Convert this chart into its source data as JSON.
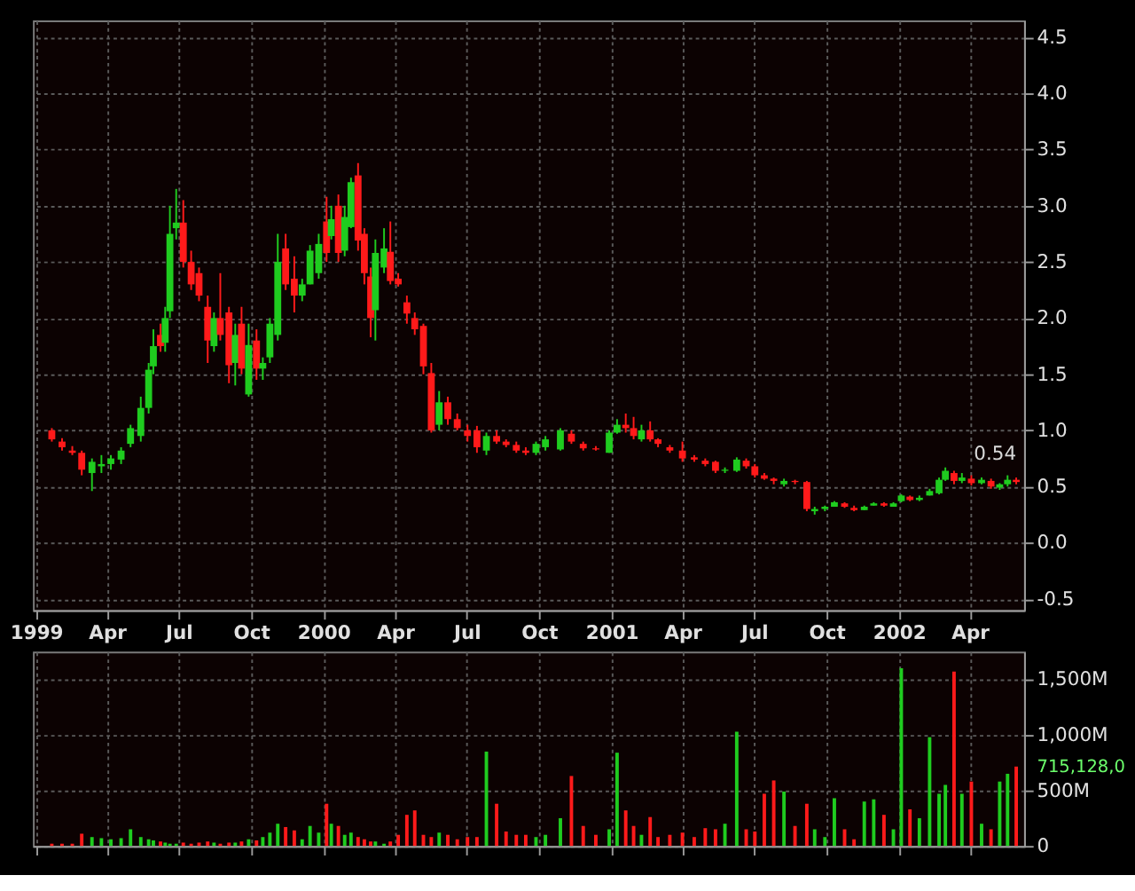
{
  "chart_data": [
    {
      "type": "candlestick",
      "x": [
        "1999-01-21",
        "1999-02-03",
        "1999-02-16",
        "1999-02-28",
        "1999-03-13",
        "1999-03-25",
        "1999-04-06",
        "1999-04-19",
        "1999-05-01",
        "1999-05-14",
        "1999-05-24",
        "1999-05-30",
        "1999-06-08",
        "1999-06-14",
        "1999-06-20",
        "1999-06-28",
        "1999-07-07",
        "1999-07-17",
        "1999-07-27",
        "1999-08-07",
        "1999-08-15",
        "1999-08-23",
        "1999-09-03",
        "1999-09-11",
        "1999-09-19",
        "1999-09-28",
        "1999-10-08",
        "1999-10-16",
        "1999-10-25",
        "1999-11-04",
        "1999-11-14",
        "1999-11-25",
        "1999-12-05",
        "1999-12-15",
        "1999-12-26",
        "2000-01-05",
        "2000-01-11",
        "2000-01-20",
        "2000-01-28",
        "2000-02-05",
        "2000-02-14",
        "2000-02-22",
        "2000-03-01",
        "2000-03-07",
        "2000-03-18",
        "2000-03-26",
        "2000-04-05",
        "2000-04-16",
        "2000-04-26",
        "2000-05-07",
        "2000-05-17",
        "2000-05-27",
        "2000-06-07",
        "2000-06-19",
        "2000-07-02",
        "2000-07-14",
        "2000-07-26",
        "2000-08-08",
        "2000-08-20",
        "2000-09-02",
        "2000-09-14",
        "2000-09-27",
        "2000-10-09",
        "2000-10-28",
        "2000-11-11",
        "2000-11-26",
        "2000-12-12",
        "2000-12-29",
        "2001-01-08",
        "2001-01-19",
        "2001-01-29",
        "2001-02-08",
        "2001-02-19",
        "2001-03-01",
        "2001-03-16",
        "2001-04-01",
        "2001-04-16",
        "2001-04-30",
        "2001-05-13",
        "2001-05-25",
        "2001-06-09",
        "2001-06-21",
        "2001-07-02",
        "2001-07-14",
        "2001-07-26",
        "2001-08-08",
        "2001-08-22",
        "2001-09-06",
        "2001-09-16",
        "2001-09-29",
        "2001-10-11",
        "2001-10-24",
        "2001-11-05",
        "2001-11-18",
        "2001-11-30",
        "2001-12-13",
        "2001-12-25",
        "2002-01-04",
        "2002-01-15",
        "2002-01-27",
        "2002-02-09",
        "2002-02-21",
        "2002-03-01",
        "2002-03-12",
        "2002-03-22",
        "2002-04-03",
        "2002-04-16",
        "2002-04-28",
        "2002-05-09",
        "2002-05-19",
        "2002-05-30"
      ],
      "ohlc": [
        [
          1.0,
          1.02,
          0.9,
          0.92
        ],
        [
          0.9,
          0.93,
          0.82,
          0.85
        ],
        [
          0.82,
          0.86,
          0.78,
          0.8
        ],
        [
          0.8,
          0.82,
          0.6,
          0.65
        ],
        [
          0.62,
          0.75,
          0.46,
          0.72
        ],
        [
          0.68,
          0.78,
          0.62,
          0.7
        ],
        [
          0.7,
          0.78,
          0.65,
          0.75
        ],
        [
          0.74,
          0.85,
          0.7,
          0.82
        ],
        [
          0.88,
          1.05,
          0.85,
          1.02
        ],
        [
          0.95,
          1.3,
          0.9,
          1.2
        ],
        [
          1.2,
          1.6,
          1.15,
          1.54
        ],
        [
          1.57,
          1.9,
          1.5,
          1.75
        ],
        [
          1.85,
          1.95,
          1.7,
          1.75
        ],
        [
          1.78,
          2.1,
          1.7,
          2.0
        ],
        [
          2.06,
          3.0,
          2.0,
          2.75
        ],
        [
          2.8,
          3.15,
          2.7,
          2.85
        ],
        [
          2.85,
          3.05,
          2.45,
          2.5
        ],
        [
          2.5,
          2.6,
          2.25,
          2.3
        ],
        [
          2.4,
          2.45,
          2.15,
          2.2
        ],
        [
          2.1,
          2.2,
          1.6,
          1.8
        ],
        [
          1.75,
          2.05,
          1.7,
          2.0
        ],
        [
          2.0,
          2.4,
          1.8,
          1.85
        ],
        [
          2.05,
          2.1,
          1.42,
          1.58
        ],
        [
          1.6,
          1.95,
          1.4,
          1.85
        ],
        [
          1.95,
          2.1,
          1.5,
          1.55
        ],
        [
          1.32,
          1.95,
          1.3,
          1.76
        ],
        [
          1.8,
          1.9,
          1.45,
          1.55
        ],
        [
          1.55,
          1.65,
          1.45,
          1.6
        ],
        [
          1.65,
          2.0,
          1.6,
          1.95
        ],
        [
          1.85,
          2.75,
          1.8,
          2.5
        ],
        [
          2.62,
          2.75,
          2.25,
          2.3
        ],
        [
          2.35,
          2.55,
          2.05,
          2.2
        ],
        [
          2.2,
          2.35,
          2.15,
          2.3
        ],
        [
          2.3,
          2.65,
          2.3,
          2.6
        ],
        [
          2.4,
          2.75,
          2.35,
          2.66
        ],
        [
          2.86,
          3.08,
          2.5,
          2.58
        ],
        [
          2.73,
          3.0,
          2.7,
          2.88
        ],
        [
          3.0,
          3.1,
          2.5,
          2.58
        ],
        [
          2.6,
          3.0,
          2.55,
          2.9
        ],
        [
          2.81,
          3.25,
          2.8,
          3.21
        ],
        [
          3.27,
          3.38,
          2.6,
          2.69
        ],
        [
          2.75,
          2.8,
          2.3,
          2.4
        ],
        [
          2.37,
          2.45,
          1.83,
          2.0
        ],
        [
          2.07,
          2.7,
          1.8,
          2.58
        ],
        [
          2.45,
          2.8,
          2.4,
          2.62
        ],
        [
          2.59,
          2.86,
          2.3,
          2.33
        ],
        [
          2.35,
          2.4,
          2.28,
          2.3
        ],
        [
          2.14,
          2.2,
          1.95,
          2.04
        ],
        [
          2.0,
          2.05,
          1.85,
          1.9
        ],
        [
          1.93,
          1.95,
          1.5,
          1.57
        ],
        [
          1.51,
          1.6,
          0.98,
          1.0
        ],
        [
          1.05,
          1.35,
          1.0,
          1.25
        ],
        [
          1.25,
          1.3,
          1.05,
          1.1
        ],
        [
          1.1,
          1.15,
          1.0,
          1.02
        ],
        [
          1.0,
          1.05,
          0.9,
          0.95
        ],
        [
          1.0,
          1.04,
          0.8,
          0.85
        ],
        [
          0.82,
          0.98,
          0.78,
          0.95
        ],
        [
          0.95,
          1.0,
          0.88,
          0.9
        ],
        [
          0.9,
          0.92,
          0.85,
          0.87
        ],
        [
          0.87,
          0.9,
          0.8,
          0.82
        ],
        [
          0.82,
          0.85,
          0.78,
          0.8
        ],
        [
          0.8,
          0.9,
          0.78,
          0.88
        ],
        [
          0.85,
          0.95,
          0.82,
          0.92
        ],
        [
          0.83,
          1.02,
          0.82,
          1.0
        ],
        [
          0.97,
          1.0,
          0.88,
          0.9
        ],
        [
          0.88,
          0.9,
          0.82,
          0.84
        ],
        [
          0.84,
          0.86,
          0.82,
          0.83
        ],
        [
          0.8,
          1.0,
          0.8,
          0.98
        ],
        [
          0.98,
          1.1,
          0.97,
          1.05
        ],
        [
          1.05,
          1.15,
          0.98,
          1.02
        ],
        [
          1.02,
          1.12,
          0.92,
          0.95
        ],
        [
          0.92,
          1.05,
          0.9,
          1.0
        ],
        [
          1.0,
          1.08,
          0.9,
          0.92
        ],
        [
          0.92,
          0.93,
          0.85,
          0.88
        ],
        [
          0.85,
          0.87,
          0.8,
          0.82
        ],
        [
          0.82,
          0.9,
          0.72,
          0.75
        ],
        [
          0.76,
          0.78,
          0.72,
          0.74
        ],
        [
          0.73,
          0.75,
          0.68,
          0.7
        ],
        [
          0.72,
          0.73,
          0.62,
          0.64
        ],
        [
          0.64,
          0.67,
          0.62,
          0.65
        ],
        [
          0.64,
          0.76,
          0.63,
          0.74
        ],
        [
          0.73,
          0.75,
          0.66,
          0.68
        ],
        [
          0.68,
          0.7,
          0.58,
          0.6
        ],
        [
          0.6,
          0.62,
          0.56,
          0.57
        ],
        [
          0.57,
          0.58,
          0.52,
          0.55
        ],
        [
          0.52,
          0.57,
          0.5,
          0.55
        ],
        [
          0.55,
          0.56,
          0.52,
          0.54
        ],
        [
          0.54,
          0.55,
          0.28,
          0.3
        ],
        [
          0.28,
          0.32,
          0.25,
          0.3
        ],
        [
          0.3,
          0.33,
          0.28,
          0.32
        ],
        [
          0.32,
          0.37,
          0.32,
          0.36
        ],
        [
          0.35,
          0.36,
          0.31,
          0.32
        ],
        [
          0.31,
          0.33,
          0.28,
          0.29
        ],
        [
          0.29,
          0.33,
          0.29,
          0.32
        ],
        [
          0.33,
          0.36,
          0.33,
          0.35
        ],
        [
          0.35,
          0.36,
          0.32,
          0.33
        ],
        [
          0.32,
          0.36,
          0.32,
          0.35
        ],
        [
          0.37,
          0.43,
          0.36,
          0.42
        ],
        [
          0.41,
          0.42,
          0.37,
          0.38
        ],
        [
          0.38,
          0.42,
          0.37,
          0.4
        ],
        [
          0.42,
          0.48,
          0.42,
          0.46
        ],
        [
          0.44,
          0.58,
          0.43,
          0.56
        ],
        [
          0.56,
          0.67,
          0.55,
          0.64
        ],
        [
          0.62,
          0.64,
          0.52,
          0.55
        ],
        [
          0.55,
          0.62,
          0.53,
          0.58
        ],
        [
          0.57,
          0.6,
          0.51,
          0.53
        ],
        [
          0.53,
          0.58,
          0.52,
          0.56
        ],
        [
          0.55,
          0.57,
          0.48,
          0.5
        ],
        [
          0.49,
          0.53,
          0.47,
          0.52
        ],
        [
          0.52,
          0.6,
          0.5,
          0.56
        ],
        [
          0.56,
          0.58,
          0.52,
          0.54
        ]
      ],
      "colors": [
        "#ff1a1a",
        "#ff1a1a",
        "#ff1a1a",
        "#ff1a1a",
        "#1fcc1f",
        "#1fcc1f",
        "#1fcc1f",
        "#1fcc1f",
        "#1fcc1f",
        "#1fcc1f",
        "#1fcc1f",
        "#1fcc1f",
        "#ff1a1a",
        "#1fcc1f",
        "#1fcc1f",
        "#1fcc1f",
        "#ff1a1a",
        "#ff1a1a",
        "#ff1a1a",
        "#ff1a1a",
        "#1fcc1f",
        "#ff1a1a",
        "#ff1a1a",
        "#1fcc1f",
        "#ff1a1a",
        "#1fcc1f",
        "#ff1a1a",
        "#1fcc1f",
        "#1fcc1f",
        "#1fcc1f",
        "#ff1a1a",
        "#ff1a1a",
        "#1fcc1f",
        "#1fcc1f",
        "#1fcc1f",
        "#ff1a1a",
        "#1fcc1f",
        "#ff1a1a",
        "#1fcc1f",
        "#1fcc1f",
        "#ff1a1a",
        "#ff1a1a",
        "#ff1a1a",
        "#1fcc1f",
        "#1fcc1f",
        "#ff1a1a",
        "#ff1a1a",
        "#ff1a1a",
        "#ff1a1a",
        "#ff1a1a",
        "#ff1a1a",
        "#1fcc1f",
        "#ff1a1a",
        "#ff1a1a",
        "#ff1a1a",
        "#ff1a1a",
        "#1fcc1f",
        "#ff1a1a",
        "#ff1a1a",
        "#ff1a1a",
        "#ff1a1a",
        "#1fcc1f",
        "#1fcc1f",
        "#1fcc1f",
        "#ff1a1a",
        "#ff1a1a",
        "#ff1a1a",
        "#1fcc1f",
        "#1fcc1f",
        "#ff1a1a",
        "#ff1a1a",
        "#1fcc1f",
        "#ff1a1a",
        "#ff1a1a",
        "#ff1a1a",
        "#ff1a1a",
        "#ff1a1a",
        "#ff1a1a",
        "#ff1a1a",
        "#1fcc1f",
        "#1fcc1f",
        "#ff1a1a",
        "#ff1a1a",
        "#ff1a1a",
        "#ff1a1a",
        "#1fcc1f",
        "#ff1a1a",
        "#ff1a1a",
        "#1fcc1f",
        "#1fcc1f",
        "#1fcc1f",
        "#ff1a1a",
        "#ff1a1a",
        "#1fcc1f",
        "#1fcc1f",
        "#ff1a1a",
        "#1fcc1f",
        "#1fcc1f",
        "#ff1a1a",
        "#1fcc1f",
        "#1fcc1f",
        "#1fcc1f",
        "#1fcc1f",
        "#ff1a1a",
        "#1fcc1f",
        "#ff1a1a",
        "#1fcc1f",
        "#ff1a1a",
        "#1fcc1f",
        "#1fcc1f",
        "#ff1a1a"
      ],
      "xlim": [
        "1998-12-28",
        "2002-06-09"
      ],
      "xticks": [
        {
          "value": "1999-01-01",
          "label": "1999"
        },
        {
          "value": "1999-04-01",
          "label": "Apr"
        },
        {
          "value": "1999-07-01",
          "label": "Jul"
        },
        {
          "value": "1999-10-01",
          "label": "Oct"
        },
        {
          "value": "2000-01-01",
          "label": "2000"
        },
        {
          "value": "2000-04-01",
          "label": "Apr"
        },
        {
          "value": "2000-07-01",
          "label": "Jul"
        },
        {
          "value": "2000-10-01",
          "label": "Oct"
        },
        {
          "value": "2001-01-01",
          "label": "2001"
        },
        {
          "value": "2001-04-01",
          "label": "Apr"
        },
        {
          "value": "2001-07-01",
          "label": "Jul"
        },
        {
          "value": "2001-10-01",
          "label": "Oct"
        },
        {
          "value": "2002-01-01",
          "label": "2002"
        },
        {
          "value": "2002-04-01",
          "label": "Apr"
        }
      ],
      "ylim": [
        -0.6,
        4.65
      ],
      "yticks": [
        -0.5,
        {
          "value": 0,
          "label": "0.0"
        },
        0.5,
        {
          "value": 1,
          "label": "1.0"
        },
        1.5,
        {
          "value": 2,
          "label": "2.0"
        },
        2.5,
        {
          "value": 3,
          "label": "3.0"
        },
        3.5,
        {
          "value": 4,
          "label": "4.0"
        },
        4.5
      ],
      "grid": true,
      "annotations": [
        {
          "text": "0.54",
          "x": "2002-05-30",
          "y": 0.54
        }
      ]
    },
    {
      "type": "bar",
      "x": [
        "1999-01-21",
        "1999-02-03",
        "1999-02-16",
        "1999-02-28",
        "1999-03-13",
        "1999-03-25",
        "1999-04-06",
        "1999-04-19",
        "1999-05-01",
        "1999-05-14",
        "1999-05-24",
        "1999-05-30",
        "1999-06-08",
        "1999-06-14",
        "1999-06-20",
        "1999-06-28",
        "1999-07-07",
        "1999-07-17",
        "1999-07-27",
        "1999-08-07",
        "1999-08-15",
        "1999-08-23",
        "1999-09-03",
        "1999-09-11",
        "1999-09-19",
        "1999-09-28",
        "1999-10-08",
        "1999-10-16",
        "1999-10-25",
        "1999-11-04",
        "1999-11-14",
        "1999-11-25",
        "1999-12-05",
        "1999-12-15",
        "1999-12-26",
        "2000-01-05",
        "2000-01-11",
        "2000-01-20",
        "2000-01-28",
        "2000-02-05",
        "2000-02-14",
        "2000-02-22",
        "2000-03-01",
        "2000-03-07",
        "2000-03-18",
        "2000-03-26",
        "2000-04-05",
        "2000-04-16",
        "2000-04-26",
        "2000-05-07",
        "2000-05-17",
        "2000-05-27",
        "2000-06-07",
        "2000-06-19",
        "2000-07-02",
        "2000-07-14",
        "2000-07-26",
        "2000-08-08",
        "2000-08-20",
        "2000-09-02",
        "2000-09-14",
        "2000-09-27",
        "2000-10-09",
        "2000-10-28",
        "2000-11-11",
        "2000-11-26",
        "2000-12-12",
        "2000-12-29",
        "2001-01-08",
        "2001-01-19",
        "2001-01-29",
        "2001-02-08",
        "2001-02-19",
        "2001-03-01",
        "2001-03-16",
        "2001-04-01",
        "2001-04-16",
        "2001-04-30",
        "2001-05-13",
        "2001-05-25",
        "2001-06-09",
        "2001-06-21",
        "2001-07-02",
        "2001-07-14",
        "2001-07-26",
        "2001-08-08",
        "2001-08-22",
        "2001-09-06",
        "2001-09-16",
        "2001-09-29",
        "2001-10-11",
        "2001-10-24",
        "2001-11-05",
        "2001-11-18",
        "2001-11-30",
        "2001-12-13",
        "2001-12-25",
        "2002-01-04",
        "2002-01-15",
        "2002-01-27",
        "2002-02-09",
        "2002-02-21",
        "2002-03-01",
        "2002-03-12",
        "2002-03-22",
        "2002-04-03",
        "2002-04-16",
        "2002-04-28",
        "2002-05-09",
        "2002-05-19",
        "2002-05-30"
      ],
      "values": [
        20,
        20,
        20,
        110,
        80,
        70,
        60,
        70,
        150,
        80,
        60,
        50,
        40,
        30,
        20,
        20,
        30,
        20,
        30,
        40,
        30,
        20,
        30,
        30,
        40,
        60,
        50,
        80,
        120,
        200,
        170,
        140,
        60,
        180,
        120,
        380,
        200,
        180,
        100,
        120,
        80,
        60,
        40,
        40,
        20,
        40,
        100,
        280,
        320,
        100,
        80,
        120,
        100,
        60,
        80,
        80,
        850,
        380,
        130,
        100,
        100,
        80,
        100,
        250,
        630,
        180,
        100,
        150,
        840,
        320,
        180,
        100,
        260,
        80,
        100,
        120,
        80,
        160,
        150,
        200,
        1030,
        150,
        130,
        470,
        590,
        490,
        180,
        380,
        150,
        80,
        430,
        150,
        60,
        400,
        420,
        280,
        150,
        1600,
        330,
        250,
        980,
        470,
        550,
        1570,
        470,
        580,
        200,
        150,
        580,
        650,
        715
      ],
      "colors": [
        "#ff1a1a",
        "#ff1a1a",
        "#ff1a1a",
        "#ff1a1a",
        "#1fcc1f",
        "#1fcc1f",
        "#1fcc1f",
        "#1fcc1f",
        "#1fcc1f",
        "#1fcc1f",
        "#1fcc1f",
        "#1fcc1f",
        "#ff1a1a",
        "#1fcc1f",
        "#1fcc1f",
        "#1fcc1f",
        "#ff1a1a",
        "#ff1a1a",
        "#ff1a1a",
        "#ff1a1a",
        "#1fcc1f",
        "#ff1a1a",
        "#ff1a1a",
        "#1fcc1f",
        "#ff1a1a",
        "#1fcc1f",
        "#ff1a1a",
        "#1fcc1f",
        "#1fcc1f",
        "#1fcc1f",
        "#ff1a1a",
        "#ff1a1a",
        "#1fcc1f",
        "#1fcc1f",
        "#1fcc1f",
        "#ff1a1a",
        "#1fcc1f",
        "#ff1a1a",
        "#1fcc1f",
        "#1fcc1f",
        "#ff1a1a",
        "#ff1a1a",
        "#ff1a1a",
        "#1fcc1f",
        "#1fcc1f",
        "#ff1a1a",
        "#ff1a1a",
        "#ff1a1a",
        "#ff1a1a",
        "#ff1a1a",
        "#ff1a1a",
        "#1fcc1f",
        "#ff1a1a",
        "#ff1a1a",
        "#ff1a1a",
        "#ff1a1a",
        "#1fcc1f",
        "#ff1a1a",
        "#ff1a1a",
        "#ff1a1a",
        "#ff1a1a",
        "#1fcc1f",
        "#1fcc1f",
        "#1fcc1f",
        "#ff1a1a",
        "#ff1a1a",
        "#ff1a1a",
        "#1fcc1f",
        "#1fcc1f",
        "#ff1a1a",
        "#ff1a1a",
        "#1fcc1f",
        "#ff1a1a",
        "#ff1a1a",
        "#ff1a1a",
        "#ff1a1a",
        "#ff1a1a",
        "#ff1a1a",
        "#ff1a1a",
        "#1fcc1f",
        "#1fcc1f",
        "#ff1a1a",
        "#ff1a1a",
        "#ff1a1a",
        "#ff1a1a",
        "#1fcc1f",
        "#ff1a1a",
        "#ff1a1a",
        "#1fcc1f",
        "#1fcc1f",
        "#1fcc1f",
        "#ff1a1a",
        "#ff1a1a",
        "#1fcc1f",
        "#1fcc1f",
        "#ff1a1a",
        "#1fcc1f",
        "#1fcc1f",
        "#ff1a1a",
        "#1fcc1f",
        "#1fcc1f",
        "#1fcc1f",
        "#1fcc1f",
        "#ff1a1a",
        "#1fcc1f",
        "#ff1a1a",
        "#1fcc1f",
        "#ff1a1a",
        "#1fcc1f",
        "#1fcc1f",
        "#ff1a1a"
      ],
      "xlim": [
        "1998-12-28",
        "2002-06-09"
      ],
      "xticks": [
        {
          "value": "1999-01-01",
          "label": null
        },
        {
          "value": "1999-04-01",
          "label": null
        },
        {
          "value": "1999-07-01",
          "label": null
        },
        {
          "value": "1999-10-01",
          "label": null
        },
        {
          "value": "2000-01-01",
          "label": null
        },
        {
          "value": "2000-04-01",
          "label": null
        },
        {
          "value": "2000-07-01",
          "label": null
        },
        {
          "value": "2000-10-01",
          "label": null
        },
        {
          "value": "2001-01-01",
          "label": null
        },
        {
          "value": "2001-04-01",
          "label": null
        },
        {
          "value": "2001-07-01",
          "label": null
        },
        {
          "value": "2001-10-01",
          "label": null
        },
        {
          "value": "2002-01-01",
          "label": null
        },
        {
          "value": "2002-04-01",
          "label": null
        }
      ],
      "ylim": [
        0,
        1750
      ],
      "yticks": [
        0,
        {
          "value": 500,
          "label": "500M"
        },
        {
          "value": 1000,
          "label": "1,000M"
        },
        {
          "value": 1500,
          "label": "1,500M"
        }
      ],
      "tick_labels": "y",
      "grid": true,
      "annotations": [
        {
          "text": "715,128,0",
          "x": "2002-05-30",
          "y": 715
        }
      ]
    }
  ]
}
